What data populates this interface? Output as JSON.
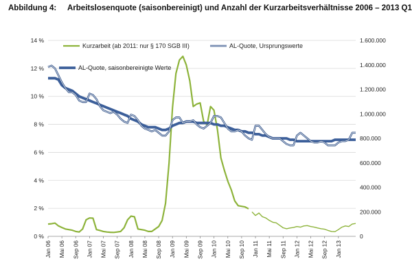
{
  "chart_data": {
    "type": "line",
    "title_number": "Abbildung 4:",
    "title": "Arbeitslosenquote (saisonbereinigt) und Anzahl der Kurzarbeitsverhältnisse 2006 – 2013 Q1",
    "xlabel": "",
    "ylabel": "",
    "y_left": {
      "min": 0,
      "max": 14,
      "ticks": [
        "0 %",
        "2 %",
        "4 %",
        "6 %",
        "8 %",
        "10 %",
        "12 %",
        "14 %"
      ]
    },
    "y_right": {
      "min": 0,
      "max": 1600000,
      "ticks": [
        "0",
        "200.000",
        "400.000",
        "600.000",
        "800.000",
        "1.000.000",
        "1.200.000",
        "1.400.000",
        "1.600.000"
      ]
    },
    "x_ticks": [
      "Jan 06",
      "Mai 06",
      "Sep 06",
      "Jan 07",
      "Mai 07",
      "Sep 07",
      "Jan 08",
      "Mai 08",
      "Sep 08",
      "Jan 09",
      "Mai 09",
      "Sep 09",
      "Jan 10",
      "Mai 10",
      "Sep 10",
      "Jan 11",
      "Mai 11",
      "Sep 11",
      "Jan 12",
      "Mai 12",
      "Sep 12",
      "Jan 13"
    ],
    "grid": true,
    "legend": "top",
    "colors": {
      "kurzarbeit": "#8db33a",
      "al_orig": "#2e4f86",
      "al_sa": "#3c5f9a"
    },
    "series": [
      {
        "name": "Kurzarbeit (ab 2011: nur § 170 SGB III)",
        "axis": "right",
        "values": [
          {
            "x": 0,
            "y": 100000
          },
          {
            "x": 1,
            "y": 103000
          },
          {
            "x": 2,
            "y": 108000
          },
          {
            "x": 3,
            "y": 85000
          },
          {
            "x": 4,
            "y": 72000
          },
          {
            "x": 5,
            "y": 60000
          },
          {
            "x": 6,
            "y": 55000
          },
          {
            "x": 7,
            "y": 50000
          },
          {
            "x": 8,
            "y": 40000
          },
          {
            "x": 9,
            "y": 35000
          },
          {
            "x": 10,
            "y": 60000
          },
          {
            "x": 11,
            "y": 135000
          },
          {
            "x": 12,
            "y": 150000
          },
          {
            "x": 13,
            "y": 148000
          },
          {
            "x": 14,
            "y": 55000
          },
          {
            "x": 15,
            "y": 48000
          },
          {
            "x": 16,
            "y": 40000
          },
          {
            "x": 17,
            "y": 35000
          },
          {
            "x": 18,
            "y": 33000
          },
          {
            "x": 19,
            "y": 32000
          },
          {
            "x": 20,
            "y": 35000
          },
          {
            "x": 21,
            "y": 40000
          },
          {
            "x": 22,
            "y": 70000
          },
          {
            "x": 23,
            "y": 135000
          },
          {
            "x": 24,
            "y": 165000
          },
          {
            "x": 25,
            "y": 160000
          },
          {
            "x": 26,
            "y": 60000
          },
          {
            "x": 27,
            "y": 55000
          },
          {
            "x": 28,
            "y": 50000
          },
          {
            "x": 29,
            "y": 40000
          },
          {
            "x": 30,
            "y": 40000
          },
          {
            "x": 31,
            "y": 60000
          },
          {
            "x": 32,
            "y": 80000
          },
          {
            "x": 33,
            "y": 130000
          },
          {
            "x": 34,
            "y": 270000
          },
          {
            "x": 35,
            "y": 600000
          },
          {
            "x": 36,
            "y": 1050000
          },
          {
            "x": 37,
            "y": 1330000
          },
          {
            "x": 38,
            "y": 1440000
          },
          {
            "x": 39,
            "y": 1470000
          },
          {
            "x": 40,
            "y": 1400000
          },
          {
            "x": 41,
            "y": 1270000
          },
          {
            "x": 42,
            "y": 1060000
          },
          {
            "x": 43,
            "y": 1080000
          },
          {
            "x": 44,
            "y": 1090000
          },
          {
            "x": 45,
            "y": 940000
          },
          {
            "x": 46,
            "y": 910000
          },
          {
            "x": 47,
            "y": 1060000
          },
          {
            "x": 48,
            "y": 1030000
          },
          {
            "x": 49,
            "y": 870000
          },
          {
            "x": 50,
            "y": 640000
          },
          {
            "x": 51,
            "y": 540000
          },
          {
            "x": 52,
            "y": 450000
          },
          {
            "x": 53,
            "y": 380000
          },
          {
            "x": 54,
            "y": 290000
          },
          {
            "x": 55,
            "y": 250000
          },
          {
            "x": 56,
            "y": 245000
          },
          {
            "x": 57,
            "y": 240000
          },
          {
            "x": 58,
            "y": 225000
          },
          {
            "x": 59,
            "y": 200000
          },
          {
            "x": 60,
            "y": 170000
          },
          {
            "x": 61,
            "y": 190000
          },
          {
            "x": 62,
            "y": 160000
          },
          {
            "x": 63,
            "y": 150000
          },
          {
            "x": 64,
            "y": 130000
          },
          {
            "x": 65,
            "y": 115000
          },
          {
            "x": 66,
            "y": 110000
          },
          {
            "x": 67,
            "y": 90000
          },
          {
            "x": 68,
            "y": 70000
          },
          {
            "x": 69,
            "y": 62000
          },
          {
            "x": 70,
            "y": 68000
          },
          {
            "x": 71,
            "y": 72000
          },
          {
            "x": 72,
            "y": 80000
          },
          {
            "x": 73,
            "y": 75000
          },
          {
            "x": 74,
            "y": 85000
          },
          {
            "x": 75,
            "y": 88000
          },
          {
            "x": 76,
            "y": 80000
          },
          {
            "x": 77,
            "y": 75000
          },
          {
            "x": 78,
            "y": 68000
          },
          {
            "x": 79,
            "y": 62000
          },
          {
            "x": 80,
            "y": 58000
          },
          {
            "x": 81,
            "y": 48000
          },
          {
            "x": 82,
            "y": 40000
          },
          {
            "x": 83,
            "y": 38000
          },
          {
            "x": 84,
            "y": 55000
          },
          {
            "x": 85,
            "y": 75000
          },
          {
            "x": 86,
            "y": 85000
          },
          {
            "x": 87,
            "y": 80000
          },
          {
            "x": 88,
            "y": 100000
          },
          {
            "x": 89,
            "y": 105000
          }
        ]
      },
      {
        "name": "AL-Quote, Ursprungswerte",
        "axis": "left",
        "values": [
          {
            "x": 0,
            "y": 12.1
          },
          {
            "x": 1,
            "y": 12.2
          },
          {
            "x": 2,
            "y": 12.0
          },
          {
            "x": 3,
            "y": 11.5
          },
          {
            "x": 4,
            "y": 11.0
          },
          {
            "x": 5,
            "y": 10.6
          },
          {
            "x": 6,
            "y": 10.3
          },
          {
            "x": 7,
            "y": 10.3
          },
          {
            "x": 8,
            "y": 10.1
          },
          {
            "x": 9,
            "y": 9.7
          },
          {
            "x": 10,
            "y": 9.6
          },
          {
            "x": 11,
            "y": 9.6
          },
          {
            "x": 12,
            "y": 10.2
          },
          {
            "x": 13,
            "y": 10.1
          },
          {
            "x": 14,
            "y": 9.8
          },
          {
            "x": 15,
            "y": 9.3
          },
          {
            "x": 16,
            "y": 9.0
          },
          {
            "x": 17,
            "y": 8.9
          },
          {
            "x": 18,
            "y": 8.8
          },
          {
            "x": 19,
            "y": 8.9
          },
          {
            "x": 20,
            "y": 8.7
          },
          {
            "x": 21,
            "y": 8.4
          },
          {
            "x": 22,
            "y": 8.2
          },
          {
            "x": 23,
            "y": 8.1
          },
          {
            "x": 24,
            "y": 8.7
          },
          {
            "x": 25,
            "y": 8.6
          },
          {
            "x": 26,
            "y": 8.3
          },
          {
            "x": 27,
            "y": 7.9
          },
          {
            "x": 28,
            "y": 7.7
          },
          {
            "x": 29,
            "y": 7.6
          },
          {
            "x": 30,
            "y": 7.5
          },
          {
            "x": 31,
            "y": 7.6
          },
          {
            "x": 32,
            "y": 7.4
          },
          {
            "x": 33,
            "y": 7.2
          },
          {
            "x": 34,
            "y": 7.2
          },
          {
            "x": 35,
            "y": 7.5
          },
          {
            "x": 36,
            "y": 8.3
          },
          {
            "x": 37,
            "y": 8.5
          },
          {
            "x": 38,
            "y": 8.5
          },
          {
            "x": 39,
            "y": 8.1
          },
          {
            "x": 40,
            "y": 8.2
          },
          {
            "x": 41,
            "y": 8.2
          },
          {
            "x": 42,
            "y": 8.3
          },
          {
            "x": 43,
            "y": 8.0
          },
          {
            "x": 44,
            "y": 7.8
          },
          {
            "x": 45,
            "y": 7.7
          },
          {
            "x": 46,
            "y": 7.9
          },
          {
            "x": 47,
            "y": 8.1
          },
          {
            "x": 48,
            "y": 8.6
          },
          {
            "x": 49,
            "y": 8.6
          },
          {
            "x": 50,
            "y": 8.5
          },
          {
            "x": 51,
            "y": 8.1
          },
          {
            "x": 52,
            "y": 7.7
          },
          {
            "x": 53,
            "y": 7.5
          },
          {
            "x": 54,
            "y": 7.5
          },
          {
            "x": 55,
            "y": 7.6
          },
          {
            "x": 56,
            "y": 7.5
          },
          {
            "x": 57,
            "y": 7.2
          },
          {
            "x": 58,
            "y": 7.0
          },
          {
            "x": 59,
            "y": 6.9
          },
          {
            "x": 60,
            "y": 7.9
          },
          {
            "x": 61,
            "y": 7.9
          },
          {
            "x": 62,
            "y": 7.6
          },
          {
            "x": 63,
            "y": 7.3
          },
          {
            "x": 64,
            "y": 7.1
          },
          {
            "x": 65,
            "y": 7.0
          },
          {
            "x": 66,
            "y": 7.0
          },
          {
            "x": 67,
            "y": 7.0
          },
          {
            "x": 68,
            "y": 6.8
          },
          {
            "x": 69,
            "y": 6.6
          },
          {
            "x": 70,
            "y": 6.5
          },
          {
            "x": 71,
            "y": 6.5
          },
          {
            "x": 72,
            "y": 7.2
          },
          {
            "x": 73,
            "y": 7.4
          },
          {
            "x": 74,
            "y": 7.2
          },
          {
            "x": 75,
            "y": 7.0
          },
          {
            "x": 76,
            "y": 6.8
          },
          {
            "x": 77,
            "y": 6.7
          },
          {
            "x": 78,
            "y": 6.7
          },
          {
            "x": 79,
            "y": 6.8
          },
          {
            "x": 80,
            "y": 6.7
          },
          {
            "x": 81,
            "y": 6.5
          },
          {
            "x": 82,
            "y": 6.5
          },
          {
            "x": 83,
            "y": 6.5
          },
          {
            "x": 84,
            "y": 6.7
          },
          {
            "x": 85,
            "y": 6.8
          },
          {
            "x": 86,
            "y": 6.8
          },
          {
            "x": 87,
            "y": 6.9
          },
          {
            "x": 88,
            "y": 7.4
          },
          {
            "x": 89,
            "y": 7.4
          }
        ]
      },
      {
        "name": "AL-Quote, saisonbereinigte Werte",
        "axis": "left",
        "values": [
          {
            "x": 0,
            "y": 11.3
          },
          {
            "x": 1,
            "y": 11.3
          },
          {
            "x": 2,
            "y": 11.3
          },
          {
            "x": 3,
            "y": 11.2
          },
          {
            "x": 4,
            "y": 10.8
          },
          {
            "x": 5,
            "y": 10.6
          },
          {
            "x": 6,
            "y": 10.5
          },
          {
            "x": 7,
            "y": 10.4
          },
          {
            "x": 8,
            "y": 10.2
          },
          {
            "x": 9,
            "y": 10.0
          },
          {
            "x": 10,
            "y": 9.9
          },
          {
            "x": 11,
            "y": 9.8
          },
          {
            "x": 12,
            "y": 9.7
          },
          {
            "x": 13,
            "y": 9.6
          },
          {
            "x": 14,
            "y": 9.5
          },
          {
            "x": 15,
            "y": 9.4
          },
          {
            "x": 16,
            "y": 9.3
          },
          {
            "x": 17,
            "y": 9.2
          },
          {
            "x": 18,
            "y": 9.1
          },
          {
            "x": 19,
            "y": 9.0
          },
          {
            "x": 20,
            "y": 8.9
          },
          {
            "x": 21,
            "y": 8.8
          },
          {
            "x": 22,
            "y": 8.7
          },
          {
            "x": 23,
            "y": 8.6
          },
          {
            "x": 24,
            "y": 8.4
          },
          {
            "x": 25,
            "y": 8.3
          },
          {
            "x": 26,
            "y": 8.2
          },
          {
            "x": 27,
            "y": 8.0
          },
          {
            "x": 28,
            "y": 7.9
          },
          {
            "x": 29,
            "y": 7.8
          },
          {
            "x": 30,
            "y": 7.8
          },
          {
            "x": 31,
            "y": 7.8
          },
          {
            "x": 32,
            "y": 7.7
          },
          {
            "x": 33,
            "y": 7.6
          },
          {
            "x": 34,
            "y": 7.6
          },
          {
            "x": 35,
            "y": 7.7
          },
          {
            "x": 36,
            "y": 7.9
          },
          {
            "x": 37,
            "y": 8.0
          },
          {
            "x": 38,
            "y": 8.1
          },
          {
            "x": 39,
            "y": 8.1
          },
          {
            "x": 40,
            "y": 8.2
          },
          {
            "x": 41,
            "y": 8.2
          },
          {
            "x": 42,
            "y": 8.2
          },
          {
            "x": 43,
            "y": 8.1
          },
          {
            "x": 44,
            "y": 8.1
          },
          {
            "x": 45,
            "y": 8.1
          },
          {
            "x": 46,
            "y": 8.1
          },
          {
            "x": 47,
            "y": 8.1
          },
          {
            "x": 48,
            "y": 8.0
          },
          {
            "x": 49,
            "y": 8.0
          },
          {
            "x": 50,
            "y": 7.9
          },
          {
            "x": 51,
            "y": 7.9
          },
          {
            "x": 52,
            "y": 7.8
          },
          {
            "x": 53,
            "y": 7.7
          },
          {
            "x": 54,
            "y": 7.6
          },
          {
            "x": 55,
            "y": 7.6
          },
          {
            "x": 56,
            "y": 7.5
          },
          {
            "x": 57,
            "y": 7.5
          },
          {
            "x": 58,
            "y": 7.4
          },
          {
            "x": 59,
            "y": 7.4
          },
          {
            "x": 60,
            "y": 7.3
          },
          {
            "x": 61,
            "y": 7.3
          },
          {
            "x": 62,
            "y": 7.2
          },
          {
            "x": 63,
            "y": 7.2
          },
          {
            "x": 64,
            "y": 7.1
          },
          {
            "x": 65,
            "y": 7.0
          },
          {
            "x": 66,
            "y": 7.0
          },
          {
            "x": 67,
            "y": 7.0
          },
          {
            "x": 68,
            "y": 7.0
          },
          {
            "x": 69,
            "y": 7.0
          },
          {
            "x": 70,
            "y": 6.9
          },
          {
            "x": 71,
            "y": 6.9
          },
          {
            "x": 72,
            "y": 6.8
          },
          {
            "x": 73,
            "y": 6.8
          },
          {
            "x": 74,
            "y": 6.8
          },
          {
            "x": 75,
            "y": 6.8
          },
          {
            "x": 76,
            "y": 6.8
          },
          {
            "x": 77,
            "y": 6.8
          },
          {
            "x": 78,
            "y": 6.8
          },
          {
            "x": 79,
            "y": 6.8
          },
          {
            "x": 80,
            "y": 6.8
          },
          {
            "x": 81,
            "y": 6.8
          },
          {
            "x": 82,
            "y": 6.8
          },
          {
            "x": 83,
            "y": 6.9
          },
          {
            "x": 84,
            "y": 6.9
          },
          {
            "x": 85,
            "y": 6.9
          },
          {
            "x": 86,
            "y": 6.9
          },
          {
            "x": 87,
            "y": 6.9
          },
          {
            "x": 88,
            "y": 6.9
          },
          {
            "x": 89,
            "y": 6.9
          }
        ]
      }
    ]
  }
}
